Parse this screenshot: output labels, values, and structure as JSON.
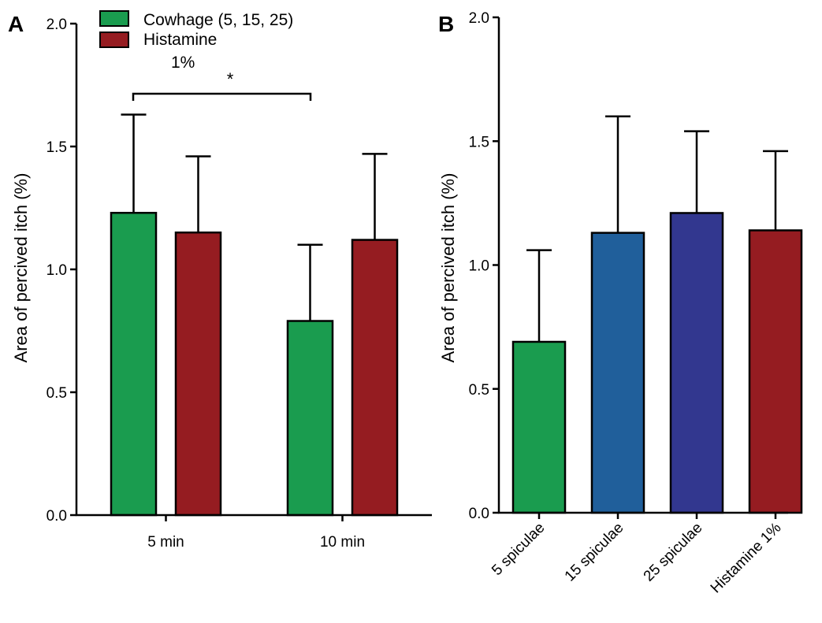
{
  "panels": {
    "a": {
      "letter": "A"
    },
    "b": {
      "letter": "B"
    }
  },
  "chart_data": [
    {
      "type": "bar",
      "panel": "A",
      "categories": [
        "5 min",
        "10 min"
      ],
      "series": [
        {
          "name": "Cowhage (5, 15, 25)",
          "color": "#1a9c4f",
          "values": [
            1.23,
            0.79
          ],
          "error": [
            0.4,
            0.31
          ]
        },
        {
          "name": "Histamine 1%",
          "color": "#951c21",
          "values": [
            1.15,
            1.12
          ],
          "error": [
            0.31,
            0.35
          ]
        }
      ],
      "legend": {
        "position": "top",
        "entries": [
          {
            "label": "Cowhage (5, 15, 25)",
            "color": "#1a9c4f"
          },
          {
            "label": "Histamine",
            "sublabel": "1%",
            "color": "#951c21"
          }
        ]
      },
      "significance": {
        "label": "*",
        "between": [
          "Cowhage 5 min",
          "Cowhage 10 min"
        ]
      },
      "ylabel": "Area of percived itch (%)",
      "ylim": [
        0,
        2.0
      ],
      "yticks": [
        "0.0",
        "0.5",
        "1.0",
        "1.5",
        "2.0"
      ],
      "grid": false
    },
    {
      "type": "bar",
      "panel": "B",
      "categories": [
        "5 spiculae",
        "15 spiculae",
        "25 spiculae",
        "Histamine 1%"
      ],
      "values": [
        0.69,
        1.13,
        1.21,
        1.14
      ],
      "error": [
        0.37,
        0.47,
        0.33,
        0.32
      ],
      "colors": [
        "#1a9c4f",
        "#205f9b",
        "#32378f",
        "#951c21"
      ],
      "ylabel": "Area of percived itch (%)",
      "ylim": [
        0,
        2.0
      ],
      "yticks": [
        "0.0",
        "0.5",
        "1.0",
        "1.5",
        "2.0"
      ],
      "grid": false
    }
  ]
}
